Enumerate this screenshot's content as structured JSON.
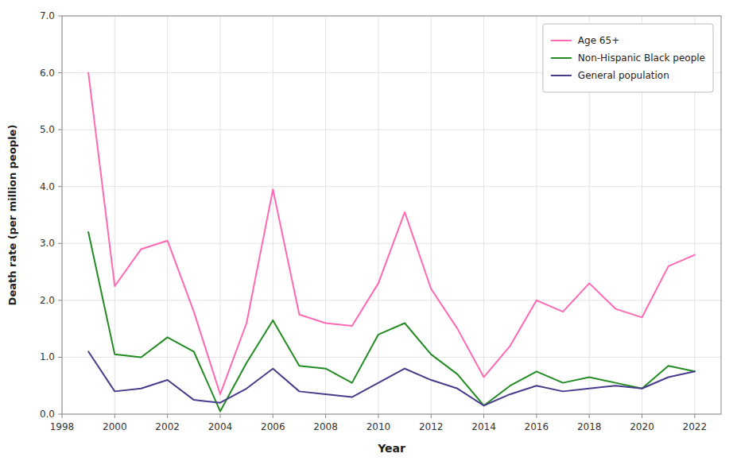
{
  "chart_data": {
    "type": "line",
    "x": [
      1999,
      2000,
      2001,
      2002,
      2003,
      2004,
      2005,
      2006,
      2007,
      2008,
      2009,
      2010,
      2011,
      2012,
      2013,
      2014,
      2015,
      2016,
      2017,
      2018,
      2019,
      2020,
      2021,
      2022
    ],
    "series": [
      {
        "name": "Age 65+",
        "color": "#ff69b4",
        "values": [
          6.0,
          2.25,
          2.9,
          3.05,
          1.8,
          0.35,
          1.6,
          3.95,
          1.75,
          1.6,
          1.55,
          2.3,
          3.55,
          2.2,
          1.5,
          0.65,
          1.2,
          2.0,
          1.8,
          2.3,
          1.85,
          1.7,
          2.6,
          2.8
        ]
      },
      {
        "name": "Non-Hispanic Black people",
        "color": "#228b22",
        "values": [
          3.2,
          1.05,
          1.0,
          1.35,
          1.1,
          0.05,
          0.9,
          1.65,
          0.85,
          0.8,
          0.55,
          1.4,
          1.6,
          1.05,
          0.7,
          0.15,
          0.5,
          0.75,
          0.55,
          0.65,
          0.55,
          0.45,
          0.85,
          0.75
        ]
      },
      {
        "name": "General population",
        "color": "#483d8b",
        "values": [
          1.1,
          0.4,
          0.45,
          0.6,
          0.25,
          0.2,
          0.45,
          0.8,
          0.4,
          0.35,
          0.3,
          0.55,
          0.8,
          0.6,
          0.45,
          0.15,
          0.35,
          0.5,
          0.4,
          0.45,
          0.5,
          0.45,
          0.65,
          0.75
        ]
      }
    ],
    "xlabel": "Year",
    "ylabel": "Death rate (per million people)",
    "xlim": [
      1998,
      2023
    ],
    "ylim": [
      0.0,
      7.0
    ],
    "xticks": [
      1998,
      2000,
      2002,
      2004,
      2006,
      2008,
      2010,
      2012,
      2014,
      2016,
      2018,
      2020,
      2022
    ],
    "yticks": [
      {
        "value": 0.0,
        "label": "0.0"
      },
      {
        "value": 1.0,
        "label": "1.0"
      },
      {
        "value": 2.0,
        "label": "2.0"
      },
      {
        "value": 3.0,
        "label": "3.0"
      },
      {
        "value": 4.0,
        "label": "4.0"
      },
      {
        "value": 5.0,
        "label": "5.0"
      },
      {
        "value": 6.0,
        "label": "6.0"
      },
      {
        "value": 7.0,
        "label": "7.0"
      }
    ],
    "grid": true,
    "legend": "upper right"
  }
}
